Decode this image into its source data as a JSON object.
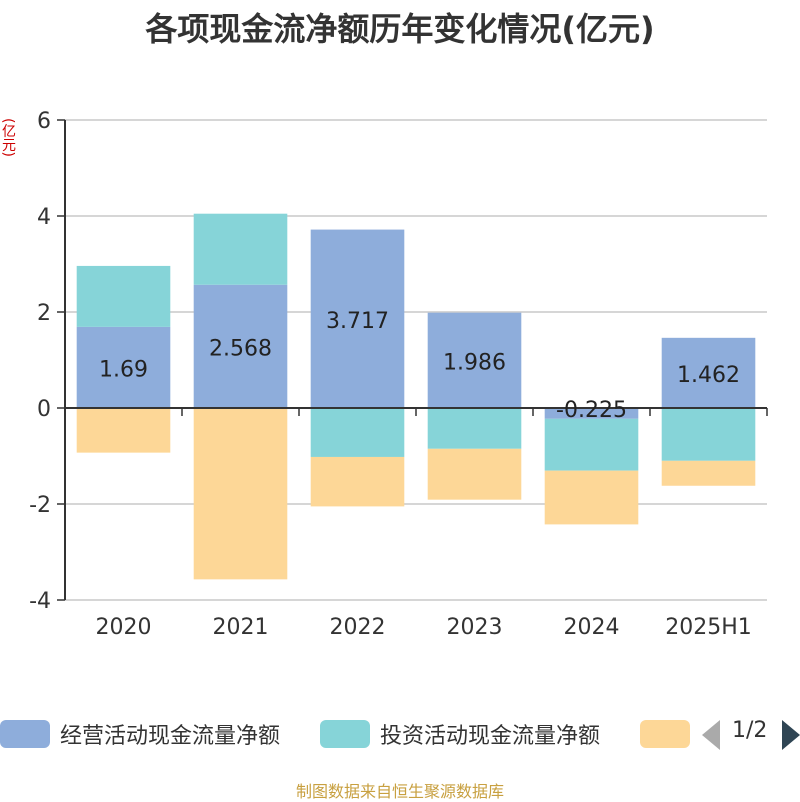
{
  "title": "各项现金流净额历年变化情况(亿元)",
  "unit_label": "(亿元)",
  "legend": {
    "items": [
      {
        "label": "经营活动现金流量净额",
        "color": "#8eaddb"
      },
      {
        "label": "投资活动现金流量净额",
        "color": "#86d4d8"
      },
      {
        "label": "",
        "color": "#fdd797"
      }
    ],
    "page": "1/2"
  },
  "source": "制图数据来自恒生聚源数据库",
  "chart_data": {
    "type": "bar",
    "stacked": true,
    "categories": [
      "2020",
      "2021",
      "2022",
      "2023",
      "2024",
      "2025H1"
    ],
    "ylim": [
      -4,
      6
    ],
    "yticks": [
      -4,
      -2,
      0,
      2,
      4,
      6
    ],
    "grid": true,
    "legend_position": "bottom",
    "series": [
      {
        "name": "经营活动现金流量净额",
        "color": "#8eaddb",
        "values": [
          1.69,
          2.568,
          3.717,
          1.986,
          -0.225,
          1.462
        ],
        "labels": [
          "1.69",
          "2.568",
          "3.717",
          "1.986",
          "-0.225",
          "1.462"
        ]
      },
      {
        "name": "投资活动现金流量净额",
        "color": "#86d4d8",
        "values": [
          1.27,
          1.48,
          -1.02,
          -0.85,
          -1.08,
          -1.1
        ]
      },
      {
        "color": "#fdd797",
        "values": [
          -0.93,
          -3.57,
          -1.03,
          -1.06,
          -1.12,
          -0.52
        ]
      }
    ]
  }
}
